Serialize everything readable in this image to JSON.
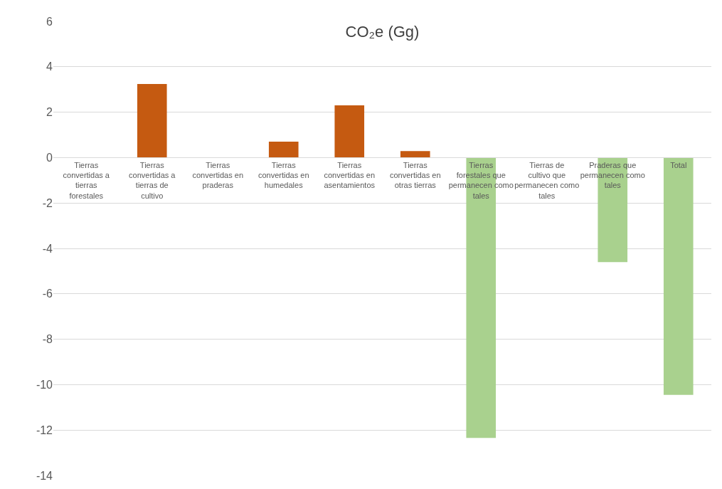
{
  "chart_data": {
    "type": "bar",
    "title": "CO₂e (Gg)",
    "categories": [
      "Tierras convertidas a tierras forestales",
      "Tierras convertidas a tierras de cultivo",
      "Tierras convertidas en praderas",
      "Tierras convertidas en humedales",
      "Tierras convertidas en asentamientos",
      "Tierras convertidas en otras tierras",
      "Tierras forestales que permanecen como tales",
      "Tierras de cultivo que permanecen como tales",
      "Praderas que permanecen como tales",
      "Total"
    ],
    "values": [
      0,
      3.24,
      0,
      0.7,
      2.3,
      0.29,
      -12.35,
      0,
      -4.6,
      -10.45
    ],
    "colors": [
      "#c55a11",
      "#c55a11",
      "#c55a11",
      "#c55a11",
      "#c55a11",
      "#c55a11",
      "#a9d18e",
      "#a9d18e",
      "#a9d18e",
      "#a9d18e"
    ],
    "ylim": [
      -14,
      6
    ],
    "yticks": [
      -14,
      -12,
      -10,
      -8,
      -6,
      -4,
      -2,
      0,
      2,
      4,
      6
    ],
    "grid": "y"
  }
}
